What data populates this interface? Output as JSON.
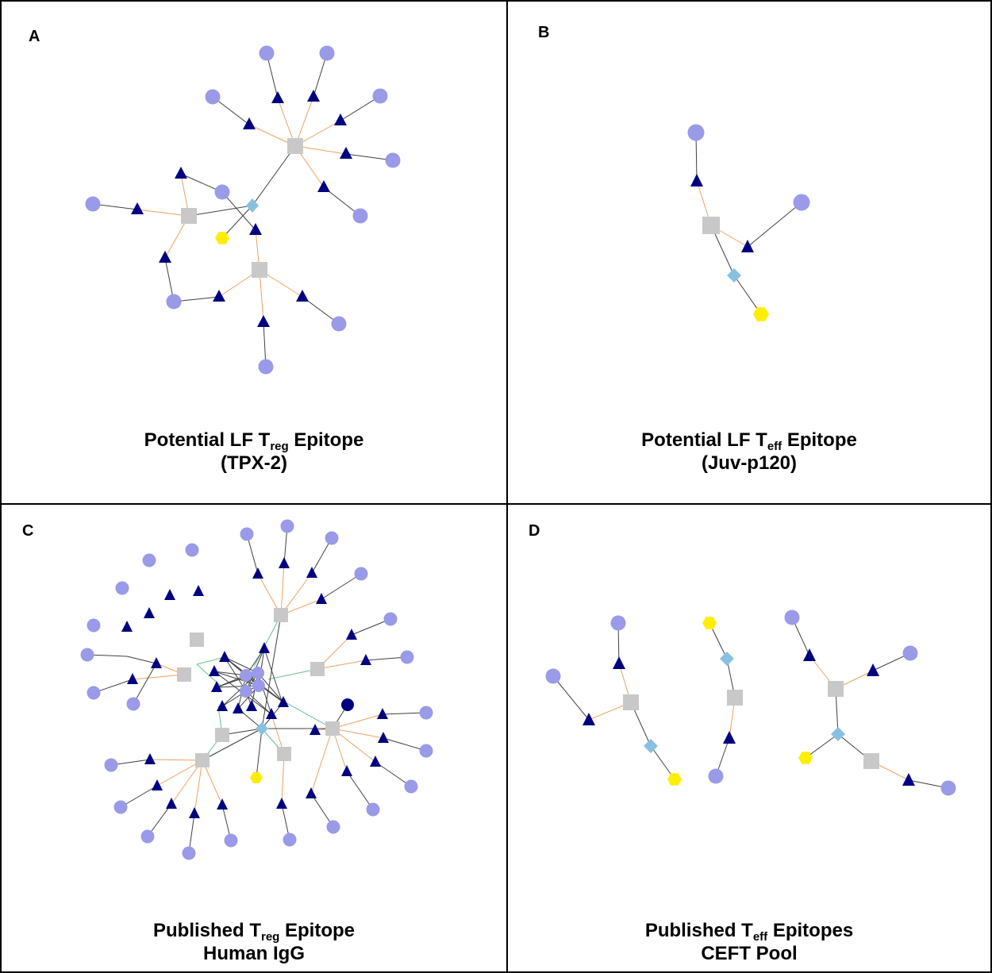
{
  "panels": {
    "a": {
      "letter": "A",
      "title_pre": "Potential LF T",
      "title_sub": "reg",
      "title_post": " Epitope",
      "subtitle": "(TPX-2)"
    },
    "b": {
      "letter": "B",
      "title_pre": "Potential LF T",
      "title_sub": "eff",
      "title_post": " Epitope",
      "subtitle": "(Juv-p120)"
    },
    "c": {
      "letter": "C",
      "title_pre": "Published T",
      "title_sub": "reg",
      "title_post": " Epitope",
      "subtitle": "Human IgG"
    },
    "d": {
      "letter": "D",
      "title_pre": "Published T",
      "title_sub": "eff",
      "title_post": " Epitopes",
      "subtitle": "CEFT Pool"
    }
  },
  "colors": {
    "circle_node": "#9a9ae8",
    "triangle_node": "#000080",
    "square_node": "#c8c8c8",
    "diamond_node": "#88c0e0",
    "hexagon_node": "#ffee00",
    "edge_dark": "#404040",
    "edge_orange": "#f0a060",
    "edge_green": "#60c090"
  },
  "node_shapes": [
    "circle-node",
    "triangle-node",
    "square-node",
    "diamond-node",
    "hexagon-node"
  ]
}
